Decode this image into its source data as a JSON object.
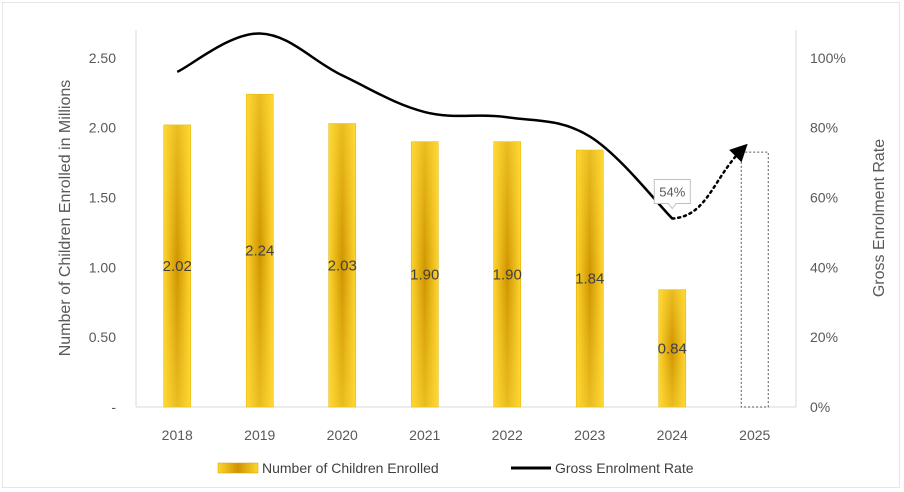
{
  "chart_data": {
    "type": "bar",
    "categories": [
      "2018",
      "2019",
      "2020",
      "2021",
      "2022",
      "2023",
      "2024",
      "2025"
    ],
    "series": [
      {
        "name": "Number of Children Enrolled",
        "type": "bar",
        "axis": "left",
        "values": [
          2.02,
          2.24,
          2.03,
          1.9,
          1.9,
          1.84,
          0.84,
          null
        ],
        "labels": [
          "2.02",
          "2.24",
          "2.03",
          "1.90",
          "1.90",
          "1.84",
          "0.84",
          ""
        ]
      },
      {
        "name": "Gross Enrolment Rate",
        "type": "line",
        "axis": "right",
        "values": [
          0.96,
          1.07,
          0.95,
          0.845,
          0.83,
          0.775,
          0.54,
          null
        ],
        "projection": {
          "from": "2024",
          "to": "2025",
          "end_value": 0.74
        }
      }
    ],
    "projected_bar": {
      "category": "2025",
      "value_right": 0.73,
      "style": "dotted-outline"
    },
    "callout": {
      "category": "2024",
      "text": "54%"
    },
    "left_axis": {
      "label": "Number of Children Enrolled in Millions",
      "ticks": [
        "-",
        "0.50",
        "1.00",
        "1.50",
        "2.00",
        "2.50"
      ],
      "tick_values": [
        0,
        0.5,
        1.0,
        1.5,
        2.0,
        2.5
      ],
      "range": [
        0,
        2.7
      ]
    },
    "right_axis": {
      "label": "Gross Enrolment Rate",
      "ticks": [
        "0%",
        "20%",
        "40%",
        "60%",
        "80%",
        "100%"
      ],
      "tick_values": [
        0,
        0.2,
        0.4,
        0.6,
        0.8,
        1.0
      ],
      "range": [
        0,
        1.08
      ]
    },
    "grid": false,
    "legend": {
      "placement": "bottom",
      "items": [
        "Number of Children Enrolled",
        "Gross Enrolment Rate"
      ]
    },
    "colors": {
      "bar_edge": "#f5c518",
      "bar_center": "#c98c00",
      "line": "#000000",
      "text": "#595959"
    }
  }
}
